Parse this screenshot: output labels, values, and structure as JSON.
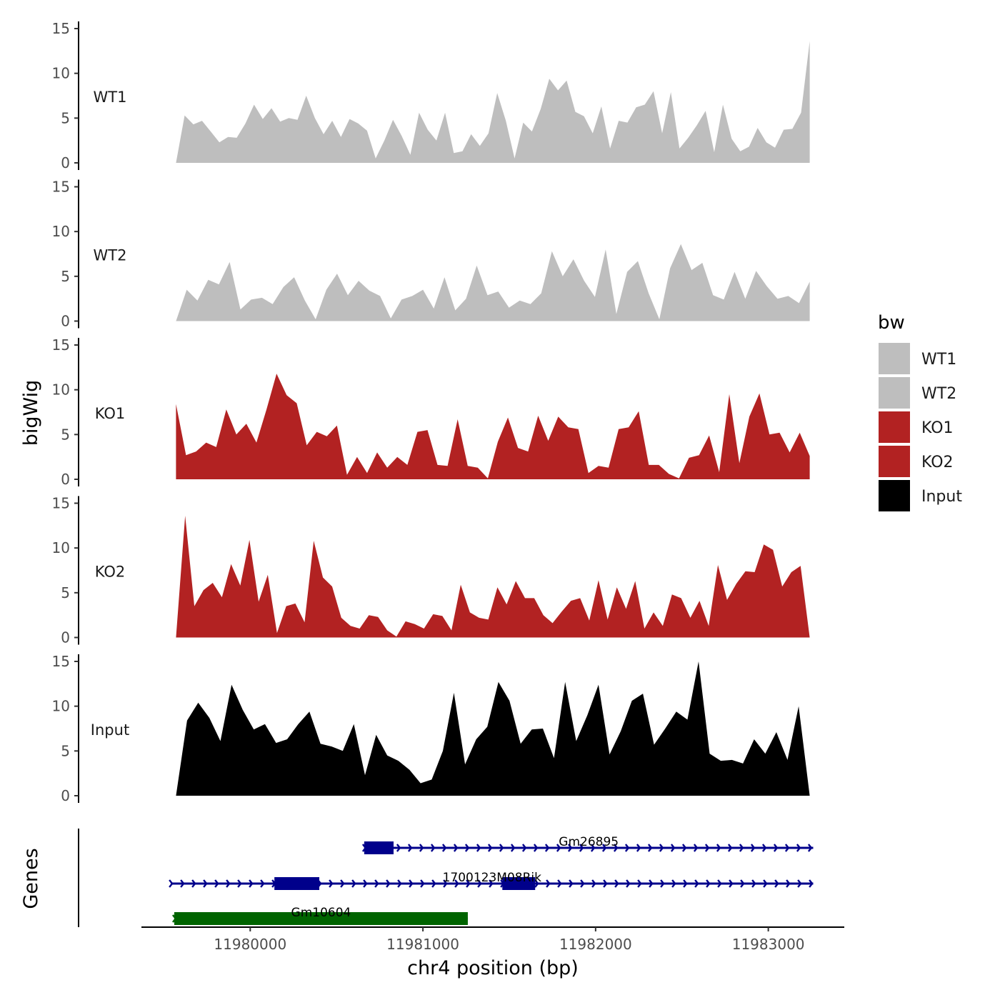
{
  "chart_data": {
    "type": "area",
    "ylabel": "bigWig",
    "genes_label": "Genes",
    "xlabel": "chr4 position (bp)",
    "x_range": [
      11979570,
      11983240
    ],
    "xlim": [
      11979370,
      11983440
    ],
    "ylim": [
      0,
      15
    ],
    "y_ticks": [
      0,
      5,
      10,
      15
    ],
    "x_ticks": [
      11980000,
      11981000,
      11982000,
      11983000
    ],
    "legend": {
      "title": "bw",
      "position": "right",
      "entries": [
        {
          "label": "WT1",
          "color": "#BEBEBE"
        },
        {
          "label": "WT2",
          "color": "#BEBEBE"
        },
        {
          "label": "KO1",
          "color": "#B22222"
        },
        {
          "label": "KO2",
          "color": "#B22222"
        },
        {
          "label": "Input",
          "color": "#000000"
        }
      ]
    },
    "series": [
      {
        "name": "WT1",
        "color": "#BEBEBE",
        "values": [
          0,
          5.3,
          4.3,
          4.7,
          3.5,
          2.3,
          2.9,
          2.8,
          4.4,
          6.5,
          4.9,
          6.1,
          4.6,
          5.0,
          4.8,
          7.5,
          5.0,
          3.2,
          4.7,
          2.9,
          4.9,
          4.4,
          3.6,
          0.5,
          2.5,
          4.8,
          3.0,
          0.9,
          5.6,
          3.7,
          2.5,
          5.6,
          1.1,
          1.3,
          3.2,
          1.9,
          3.3,
          7.8,
          4.7,
          0.5,
          4.5,
          3.5,
          6.0,
          9.4,
          8.1,
          9.2,
          5.7,
          5.2,
          3.3,
          6.3,
          1.6,
          4.7,
          4.5,
          6.2,
          6.5,
          8.0,
          3.3,
          7.9,
          1.6,
          2.8,
          4.2,
          5.8,
          1.2,
          6.5,
          2.7,
          1.3,
          1.8,
          3.9,
          2.3,
          1.7,
          3.7,
          3.8,
          5.6,
          13.6
        ]
      },
      {
        "name": "WT2",
        "color": "#BEBEBE",
        "values": [
          0,
          3.5,
          2.3,
          4.6,
          4.1,
          6.6,
          1.3,
          2.4,
          2.6,
          1.9,
          3.8,
          4.9,
          2.3,
          0.2,
          3.5,
          5.3,
          2.9,
          4.5,
          3.4,
          2.8,
          0.3,
          2.4,
          2.8,
          3.5,
          1.4,
          4.9,
          1.2,
          2.5,
          6.2,
          2.9,
          3.3,
          1.5,
          2.3,
          1.9,
          3.1,
          7.8,
          5.0,
          6.9,
          4.5,
          2.7,
          8.0,
          0.8,
          5.5,
          6.7,
          3.1,
          0.2,
          5.9,
          8.6,
          5.7,
          6.5,
          2.9,
          2.4,
          5.5,
          2.5,
          5.6,
          3.9,
          2.5,
          2.8,
          2.0,
          4.4
        ]
      },
      {
        "name": "KO1",
        "color": "#B22222",
        "values": [
          8.4,
          2.7,
          3.1,
          4.1,
          3.6,
          7.8,
          5.0,
          6.2,
          4.1,
          7.8,
          11.8,
          9.4,
          8.5,
          3.8,
          5.3,
          4.8,
          6.0,
          0.5,
          2.5,
          0.7,
          3.0,
          1.3,
          2.5,
          1.6,
          5.3,
          5.5,
          1.6,
          1.5,
          6.7,
          1.5,
          1.3,
          0.1,
          4.2,
          6.9,
          3.5,
          3.1,
          7.1,
          4.3,
          7.0,
          5.8,
          5.6,
          0.7,
          1.5,
          1.3,
          5.6,
          5.8,
          7.6,
          1.6,
          1.6,
          0.6,
          0.1,
          2.4,
          2.7,
          4.9,
          0.8,
          9.5,
          1.8,
          7.0,
          9.6,
          5.0,
          5.2,
          3.0,
          5.2,
          2.6
        ]
      },
      {
        "name": "KO2",
        "color": "#B22222",
        "values": [
          0,
          13.6,
          3.5,
          5.3,
          6.1,
          4.5,
          8.2,
          5.8,
          10.9,
          4.0,
          7.0,
          0.5,
          3.5,
          3.8,
          1.7,
          10.8,
          6.7,
          5.7,
          2.2,
          1.3,
          1.0,
          2.5,
          2.3,
          0.8,
          0.1,
          1.8,
          1.5,
          1.0,
          2.6,
          2.4,
          0.8,
          5.9,
          2.8,
          2.2,
          2.0,
          5.6,
          3.7,
          6.3,
          4.4,
          4.4,
          2.5,
          1.6,
          2.9,
          4.1,
          4.4,
          1.9,
          6.4,
          2.0,
          5.6,
          3.2,
          6.3,
          1.0,
          2.8,
          1.3,
          4.8,
          4.4,
          2.2,
          4.1,
          1.3,
          8.1,
          4.2,
          6.0,
          7.4,
          7.3,
          10.4,
          9.8,
          5.7,
          7.3,
          8.0,
          0
        ]
      },
      {
        "name": "Input",
        "color": "#000000",
        "values": [
          0,
          8.4,
          10.4,
          8.7,
          6.1,
          12.4,
          9.6,
          7.4,
          8.0,
          5.9,
          6.3,
          8.0,
          9.4,
          5.8,
          5.5,
          5.0,
          8.0,
          2.3,
          6.8,
          4.5,
          3.9,
          2.9,
          1.4,
          1.8,
          5.0,
          11.5,
          3.5,
          6.3,
          7.7,
          12.7,
          10.6,
          5.8,
          7.4,
          7.5,
          4.2,
          12.7,
          6.1,
          9.0,
          12.4,
          4.6,
          7.2,
          10.6,
          11.4,
          5.7,
          7.5,
          9.4,
          8.5,
          15.0,
          4.7,
          3.9,
          4.0,
          3.6,
          6.3,
          4.7,
          7.1,
          4.0,
          10.0,
          0
        ]
      }
    ],
    "genes": [
      {
        "name": "Gm26895",
        "start": 11980660,
        "end": 11983260,
        "strand": "+",
        "color": "#00008B",
        "exons": [
          [
            11980660,
            11980830
          ]
        ]
      },
      {
        "name": "1700123M08Rik",
        "start": 11979540,
        "end": 11983260,
        "strand": "+",
        "color": "#00008B",
        "exons": [
          [
            11980140,
            11980400
          ],
          [
            11981460,
            11981650
          ]
        ]
      },
      {
        "name": "Gm10604",
        "start": 11979560,
        "end": 11981260,
        "strand": "+",
        "color": "#006400",
        "exons": [
          [
            11979560,
            11981260
          ]
        ]
      }
    ]
  }
}
